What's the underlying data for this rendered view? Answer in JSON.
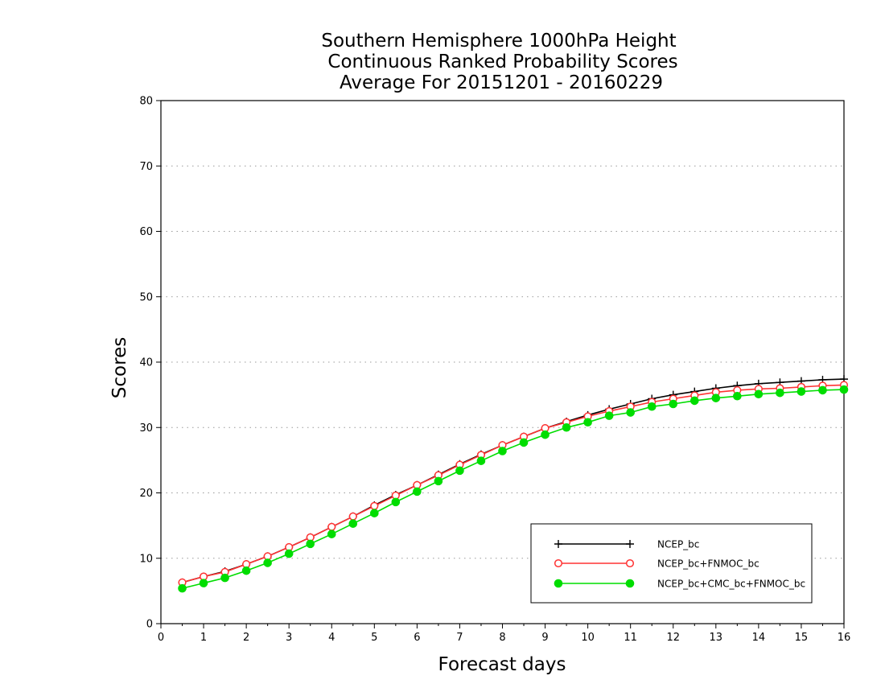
{
  "chart_data": {
    "type": "line",
    "title": [
      "Southern Hemisphere 1000hPa Height",
      "Continuous Ranked Probability Scores",
      "Average For 20151201 - 20160229"
    ],
    "xlabel": "Forecast days",
    "ylabel": "Scores",
    "xlim": [
      0,
      16
    ],
    "ylim": [
      0,
      80
    ],
    "xticks": [
      0,
      1,
      2,
      3,
      4,
      5,
      6,
      7,
      8,
      9,
      10,
      11,
      12,
      13,
      14,
      15,
      16
    ],
    "yticks": [
      0,
      10,
      20,
      30,
      40,
      50,
      60,
      70,
      80
    ],
    "grid": "horizontal dotted",
    "legend_position": "bottom-right",
    "x": [
      0.5,
      1,
      1.5,
      2,
      2.5,
      3,
      3.5,
      4,
      4.5,
      5,
      5.5,
      6,
      6.5,
      7,
      7.5,
      8,
      8.5,
      9,
      9.5,
      10,
      10.5,
      11,
      11.5,
      12,
      12.5,
      13,
      13.5,
      14,
      14.5,
      15,
      15.5,
      16
    ],
    "series": [
      {
        "name": "NCEP_bc",
        "color": "#000000",
        "marker": "plus",
        "values": [
          6.3,
          7.2,
          8.0,
          9.1,
          10.3,
          11.7,
          13.2,
          14.8,
          16.4,
          18.1,
          19.7,
          21.2,
          22.8,
          24.4,
          25.9,
          27.3,
          28.6,
          29.9,
          30.9,
          31.9,
          32.8,
          33.6,
          34.4,
          35.0,
          35.5,
          36.0,
          36.4,
          36.7,
          36.9,
          37.1,
          37.3,
          37.4
        ]
      },
      {
        "name": "NCEP_bc+FNMOC_bc",
        "color": "#ff3333",
        "marker": "open-circle",
        "values": [
          6.3,
          7.2,
          7.9,
          9.1,
          10.3,
          11.7,
          13.2,
          14.8,
          16.4,
          18.0,
          19.6,
          21.2,
          22.7,
          24.3,
          25.8,
          27.3,
          28.6,
          29.9,
          30.8,
          31.7,
          32.5,
          33.2,
          33.9,
          34.4,
          34.9,
          35.4,
          35.7,
          35.9,
          36.0,
          36.2,
          36.4,
          36.5
        ]
      },
      {
        "name": "NCEP_bc+CMC_bc+FNMOC_bc",
        "color": "#00dd00",
        "marker": "filled-circle",
        "values": [
          5.4,
          6.2,
          7.0,
          8.1,
          9.3,
          10.7,
          12.2,
          13.7,
          15.3,
          16.9,
          18.6,
          20.2,
          21.8,
          23.4,
          24.9,
          26.4,
          27.7,
          28.9,
          30.0,
          30.8,
          31.8,
          32.3,
          33.2,
          33.6,
          34.1,
          34.5,
          34.8,
          35.1,
          35.3,
          35.5,
          35.7,
          35.8
        ]
      }
    ]
  }
}
